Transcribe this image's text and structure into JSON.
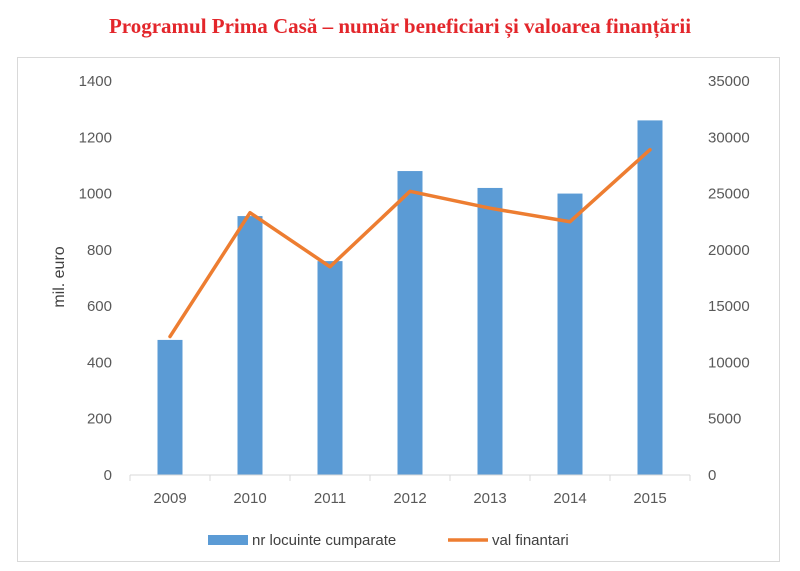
{
  "chart_data": {
    "type": "bar",
    "title": "Programul Prima Casă – număr beneficiari și valoarea finanțării",
    "ylabel": "mil. euro",
    "categories": [
      "2009",
      "2010",
      "2011",
      "2012",
      "2013",
      "2014",
      "2015"
    ],
    "series": [
      {
        "name": "nr locuinte cumparate",
        "type": "bar",
        "axis": "left",
        "color": "#5b9bd5",
        "values": [
          480,
          920,
          760,
          1080,
          1020,
          1000,
          1260
        ]
      },
      {
        "name": "val finantari",
        "type": "line",
        "axis": "right",
        "color": "#ed7d31",
        "values": [
          12300,
          23300,
          18500,
          25200,
          23700,
          22500,
          28900
        ]
      }
    ],
    "ylim_left": [
      0,
      1400
    ],
    "yticks_left": [
      "0",
      "200",
      "400",
      "600",
      "800",
      "1000",
      "1200",
      "1400"
    ],
    "ylim_right": [
      0,
      35000
    ],
    "yticks_right": [
      "0",
      "5000",
      "10000",
      "15000",
      "20000",
      "25000",
      "30000",
      "35000"
    ],
    "grid": false,
    "legend": "bottom"
  }
}
